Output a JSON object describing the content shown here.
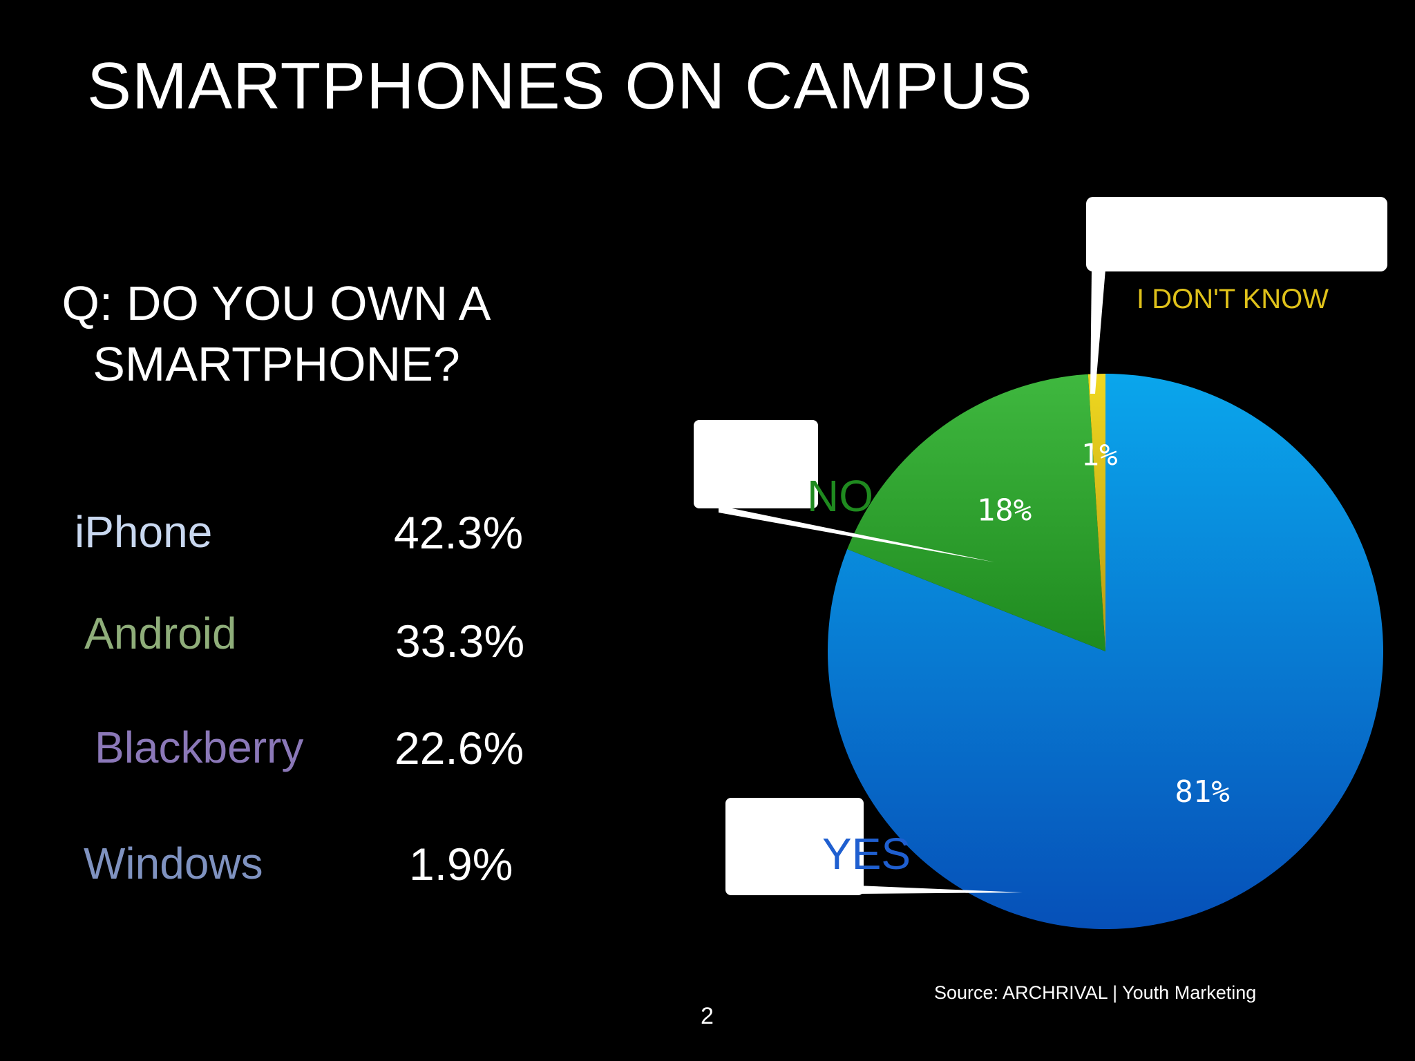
{
  "slide": {
    "title": "SMARTPHONES ON CAMPUS",
    "question_line1": "Q: DO YOU OWN A",
    "question_line2": "SMARTPHONE?",
    "source": "Source: ARCHRIVAL | Youth Marketing",
    "page_number": "2"
  },
  "brands": [
    {
      "name": "iPhone",
      "value": "42.3%",
      "color": "#c9d8f0"
    },
    {
      "name": "Android",
      "value": "33.3%",
      "color": "#8fae7a"
    },
    {
      "name": "Blackberry",
      "value": "22.6%",
      "color": "#8b78b8"
    },
    {
      "name": "Windows",
      "value": "1.9%",
      "color": "#7f92c0"
    }
  ],
  "chart_data": {
    "type": "pie",
    "title": "",
    "slices": [
      {
        "label": "YES",
        "value": 81,
        "display": "81%",
        "color": "#0a6fd0",
        "label_color": "#1f5fd0"
      },
      {
        "label": "NO",
        "value": 18,
        "display": "18%",
        "color": "#2e9c2e",
        "label_color": "#1f8a1f"
      },
      {
        "label": "I DON'T KNOW",
        "value": 1,
        "display": "1%",
        "color": "#e0c21a",
        "label_color": "#e0c21a"
      }
    ]
  }
}
